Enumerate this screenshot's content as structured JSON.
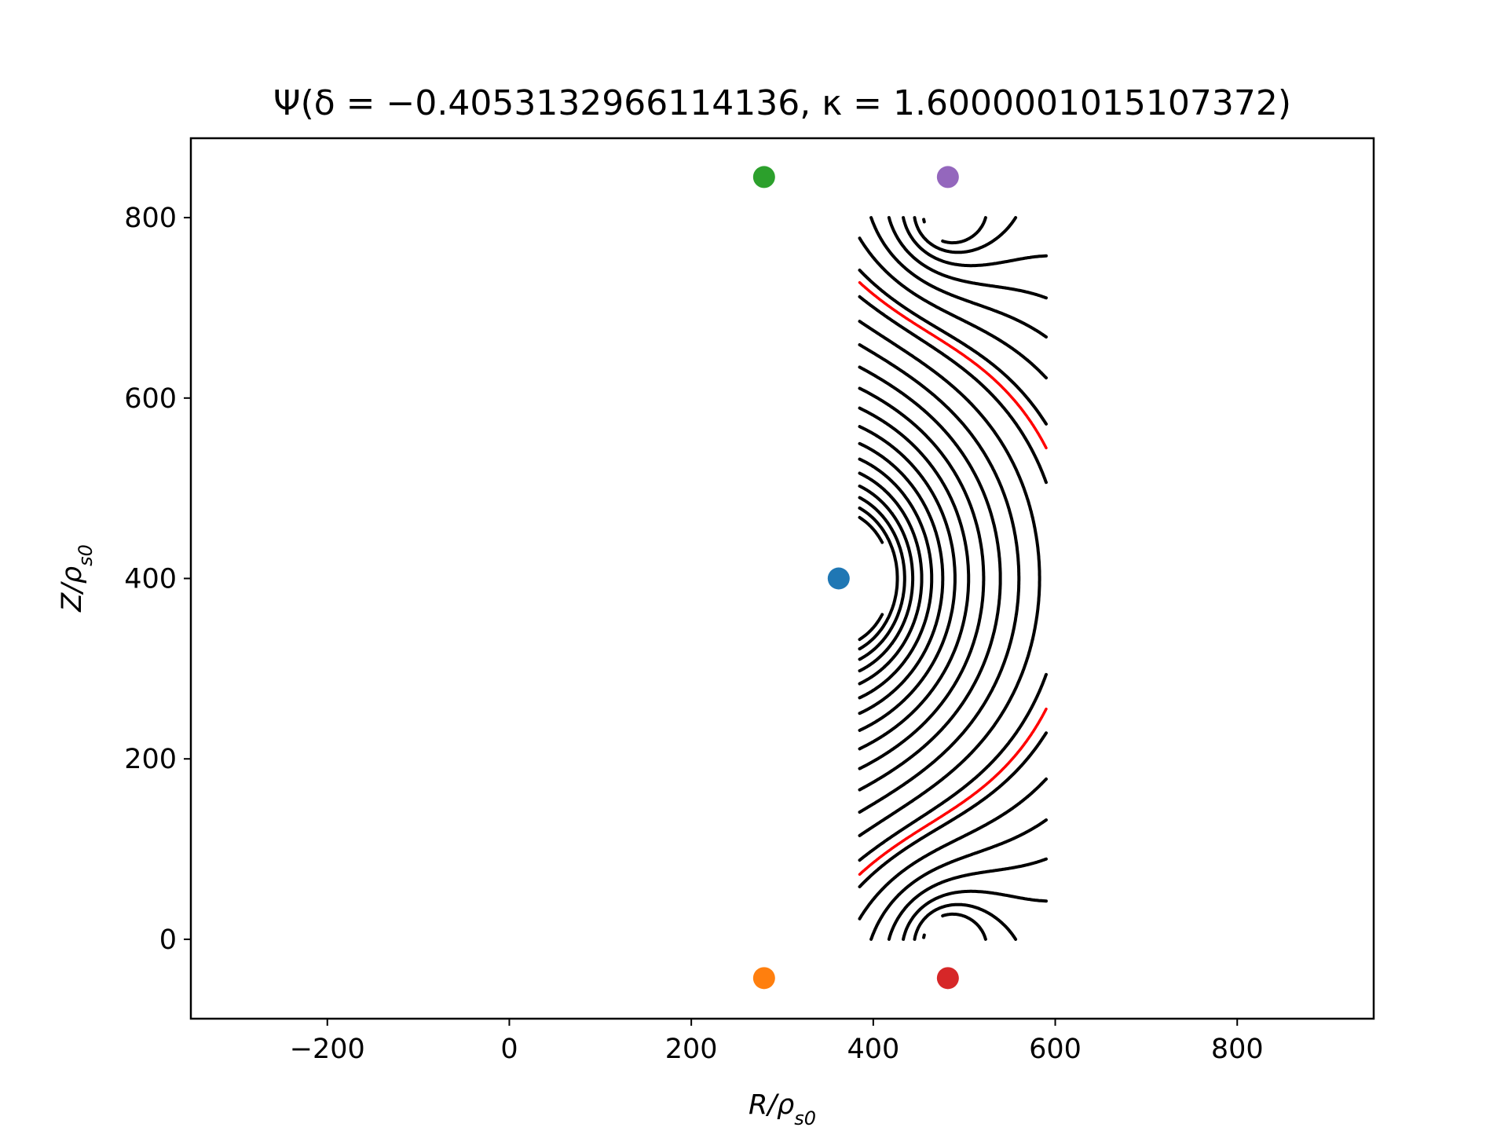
{
  "chart_data": {
    "type": "contour",
    "title": "Ψ(δ = −0.4053132966114136, κ = 1.6000001015107372)",
    "xlabel": "R/ρs0",
    "ylabel": "Z/ρs0",
    "xlim": [
      -350,
      950
    ],
    "ylim": [
      -88,
      888
    ],
    "xticks": [
      -200,
      0,
      200,
      400,
      600,
      800
    ],
    "yticks": [
      0,
      200,
      400,
      600,
      800
    ],
    "xtick_labels": [
      "−200",
      "0",
      "200",
      "400",
      "600",
      "800"
    ],
    "ytick_labels": [
      "0",
      "200",
      "400",
      "600",
      "800"
    ],
    "grid": false,
    "field": {
      "domain_r": [
        385,
        590
      ],
      "domain_z": [
        0,
        800
      ],
      "o_point": [
        362,
        400
      ],
      "x_points": [
        [
          460,
          658
        ],
        [
          460,
          142
        ]
      ],
      "coil_points": [
        [
          482,
          800
        ],
        [
          482,
          0
        ]
      ],
      "separatrix_color": "#ff0000",
      "contour_color": "#000000"
    },
    "markers": [
      {
        "x": 362,
        "y": 400,
        "color": "#1f77b4"
      },
      {
        "x": 280,
        "y": 845,
        "color": "#2ca02c"
      },
      {
        "x": 482,
        "y": 845,
        "color": "#9467bd"
      },
      {
        "x": 280,
        "y": -43,
        "color": "#ff7f0e"
      },
      {
        "x": 482,
        "y": -43,
        "color": "#d62728"
      }
    ]
  }
}
